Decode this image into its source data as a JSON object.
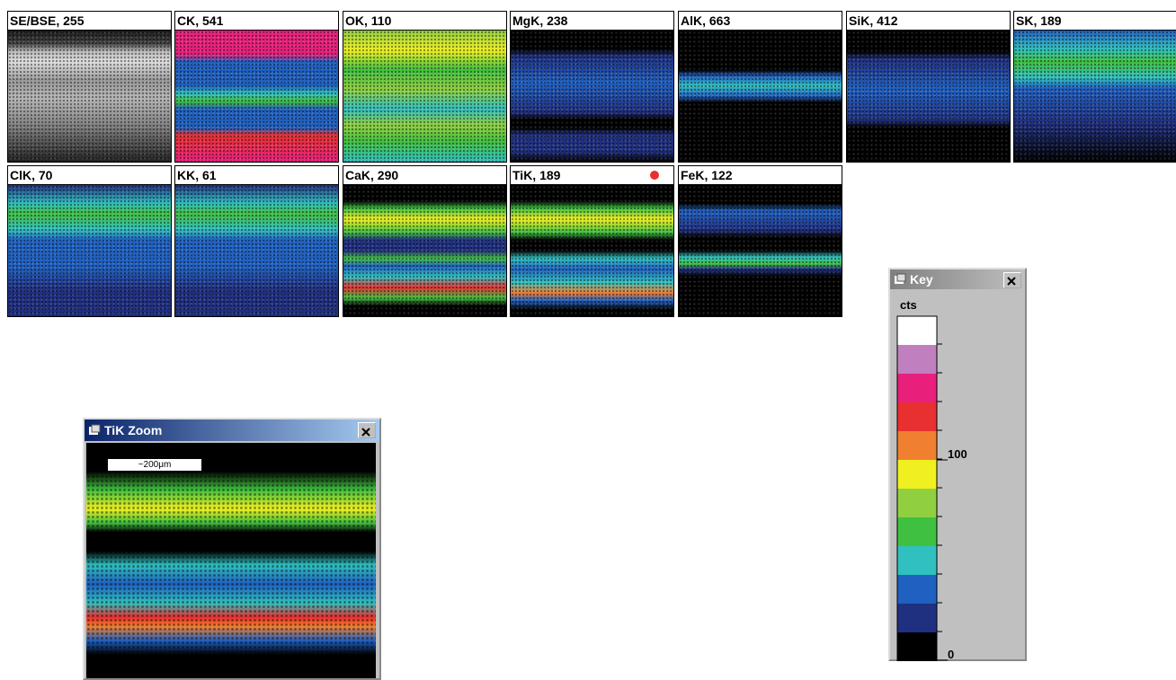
{
  "tiles": [
    {
      "label": "SE/BSE, 255"
    },
    {
      "label": "CK, 541"
    },
    {
      "label": "OK, 110"
    },
    {
      "label": "MgK, 238"
    },
    {
      "label": "AlK, 663"
    },
    {
      "label": "SiK, 412"
    },
    {
      "label": "SK, 189"
    },
    {
      "label": "ClK, 70"
    },
    {
      "label": "KK, 61"
    },
    {
      "label": "CaK, 290"
    },
    {
      "label": "TiK, 189"
    },
    {
      "label": "FeK, 122"
    }
  ],
  "zoom": {
    "title": "TiK Zoom",
    "scale_bar": "~200μm"
  },
  "key": {
    "title": "Key",
    "unit": "cts",
    "ticks": [
      "100",
      "0"
    ]
  }
}
